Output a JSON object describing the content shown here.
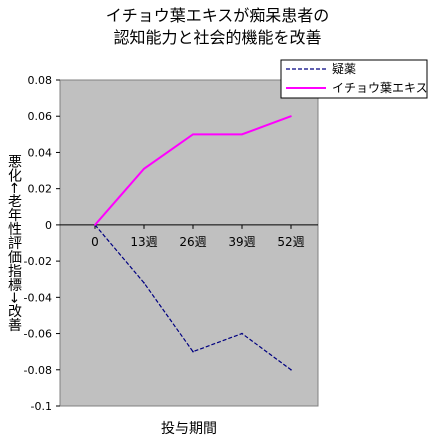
{
  "chart_data": {
    "type": "line",
    "title": "イチョウ葉エキスが痴呆患者の認知能力と社会的機能を改善",
    "title_lines": [
      "イチョウ葉エキスが痴呆患者の",
      "認知能力と社会的機能を改善"
    ],
    "xlabel": "投与期間",
    "ylabel": "悪化←老年性評価指標→改善",
    "categories": [
      "0",
      "13週",
      "26週",
      "39週",
      "52週"
    ],
    "ylim": [
      -0.1,
      0.08
    ],
    "yticks": [
      -0.1,
      -0.08,
      -0.06,
      -0.04,
      -0.02,
      0,
      0.02,
      0.04,
      0.06,
      0.08
    ],
    "ytick_labels": [
      "-0.1",
      "-0.08",
      "-0.06",
      "-0.04",
      "-0.02",
      "0",
      "0.02",
      "0.04",
      "0.06",
      "0.08"
    ],
    "grid": false,
    "legend_position": "top-right",
    "plot_background": "#c0c0c0",
    "series": [
      {
        "name": "疑薬",
        "values": [
          0,
          -0.032,
          -0.07,
          -0.06,
          -0.08
        ],
        "color": "#000080",
        "dashed": true
      },
      {
        "name": "イチョウ葉エキス",
        "values": [
          0,
          0.031,
          0.05,
          0.05,
          0.06
        ],
        "color": "#ff00ff",
        "dashed": false
      }
    ]
  }
}
